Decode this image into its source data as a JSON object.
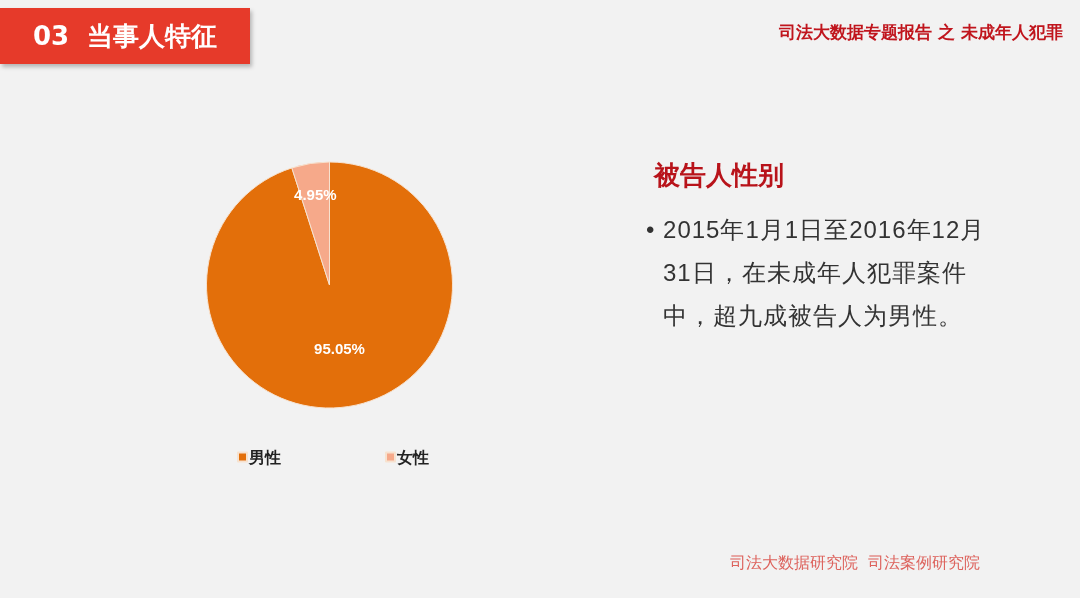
{
  "chart_data": {
    "type": "pie",
    "title": "被告人性别",
    "categories": [
      "男性",
      "女性"
    ],
    "values": [
      95.05,
      4.95
    ],
    "colors": [
      "#e36f0a",
      "#f6a98a"
    ],
    "value_labels": [
      "95.05%",
      "4.95%"
    ],
    "legend": "bottom",
    "annotations": [
      "03  当事人特征",
      "司法大数据专题报告 之 未成年人犯罪",
      "• 2015年1月1日至2016年12月31日，在未成年人犯罪案件中，超九成被告人为男性。",
      "司法大数据研究院  司法案例研究院"
    ]
  }
}
